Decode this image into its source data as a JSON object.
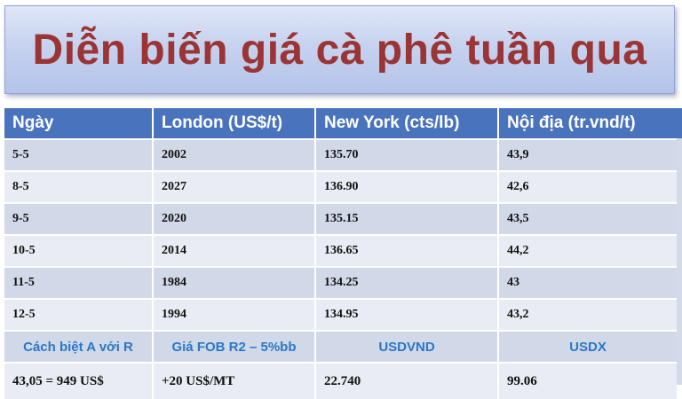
{
  "title": "Diễn biến giá cà phê tuần qua",
  "table": {
    "headers": [
      "Ngày",
      "London (US$/t)",
      "New York (cts/lb)",
      "Nội địa (tr.vnd/t)"
    ],
    "rows": [
      [
        "5-5",
        "2002",
        "135.70",
        "43,9"
      ],
      [
        "8-5",
        "2027",
        "136.90",
        "42,6"
      ],
      [
        "9-5",
        "2020",
        "135.15",
        "43,5"
      ],
      [
        "10-5",
        "2014",
        "136.65",
        "44,2"
      ],
      [
        "11-5",
        "1984",
        "134.25",
        "43"
      ],
      [
        "12-5",
        "1994",
        "134.95",
        "43,2"
      ]
    ],
    "subheaders": [
      "Cách biệt A với R",
      "Giá FOB R2 – 5%bb",
      "USDVND",
      "USDX"
    ],
    "last_row": [
      "43,05 = 949 US$",
      "+20 US$/MT",
      "22.740",
      "99.06"
    ]
  }
}
